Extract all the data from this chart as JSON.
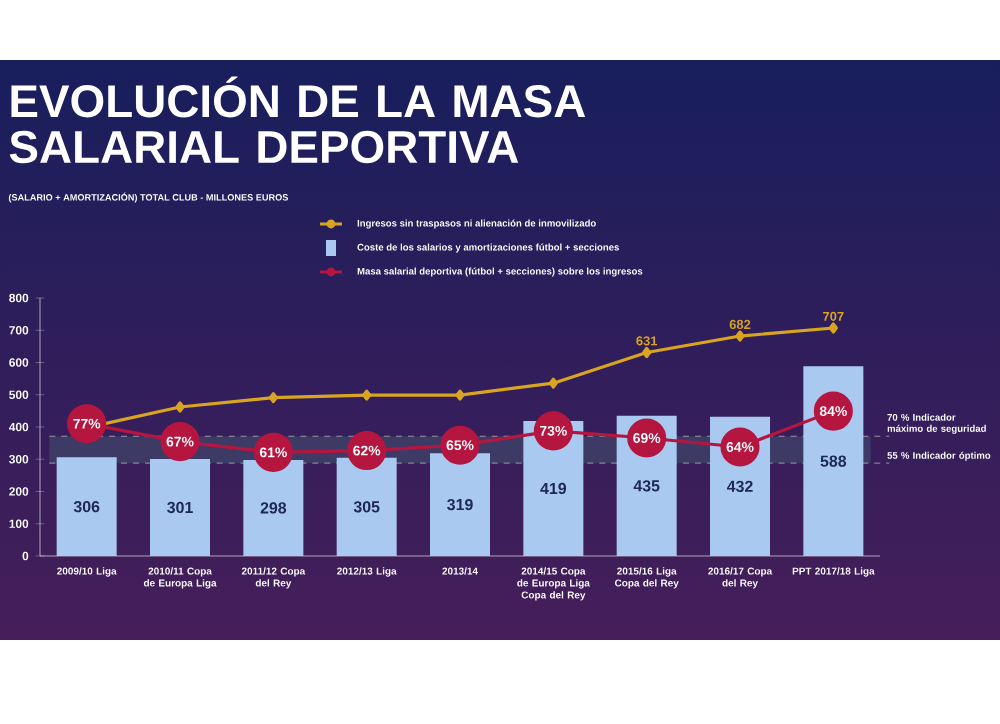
{
  "chart_data": {
    "type": "bar",
    "title": "EVOLUCIÓN DE LA MASA SALARIAL DEPORTIVA",
    "subtitle": "(SALARIO + AMORTIZACIÓN) TOTAL CLUB  - MILLONES EUROS",
    "categories": [
      "2009/10 Liga",
      "2010/11 Copa de Europa Liga",
      "2011/12 Copa del Rey",
      "2012/13 Liga",
      "2013/14",
      "2014/15 Copa de Europa Liga Copa del Rey",
      "2015/16 Liga Copa del Rey",
      "2016/17 Copa del Rey",
      "PPT 2017/18 Liga"
    ],
    "series": [
      {
        "name": "Ingresos sin traspasos ni alienación de inmovilizado",
        "type": "line",
        "color": "#d9a521",
        "marker": "diamond",
        "values": [
          398,
          462,
          491,
          499,
          499,
          536,
          631,
          682,
          707
        ],
        "value_labels": [
          null,
          null,
          null,
          null,
          null,
          null,
          "631",
          "682",
          "707"
        ]
      },
      {
        "name": "Coste de los salarios y amortizaciones fútbol + secciones",
        "color": "#a9c9f0",
        "values": [
          306,
          301,
          298,
          305,
          319,
          419,
          435,
          432,
          588
        ],
        "data_labels": true
      },
      {
        "name": "Masa salarial deportiva (fútbol + secciones) sobre los ingresos",
        "type": "line",
        "axis": "y2",
        "color": "#b5163f",
        "marker": "circle",
        "values": [
          77,
          67,
          61,
          62,
          65,
          73,
          69,
          64,
          84
        ],
        "value_labels": [
          "77%",
          "67%",
          "61%",
          "62%",
          "65%",
          "73%",
          "69%",
          "64%",
          "84%"
        ]
      }
    ],
    "ylim": [
      0,
      800
    ],
    "yticks": [
      0,
      100,
      200,
      300,
      400,
      500,
      600,
      700,
      800
    ],
    "y2lim": [
      3.2,
      147.1
    ],
    "bands": [
      {
        "axis": "y2",
        "from": 55,
        "to": 70,
        "color": "#3d3a66"
      }
    ],
    "ref_lines": [
      {
        "axis": "y2",
        "value": 70,
        "label": "70 % Indicador máximo de seguridad",
        "line_style": "dashed"
      },
      {
        "axis": "y2",
        "value": 55,
        "label": "55 % Indicador óptimo",
        "line_style": "dashed"
      }
    ],
    "legend": "top",
    "grid": false
  }
}
